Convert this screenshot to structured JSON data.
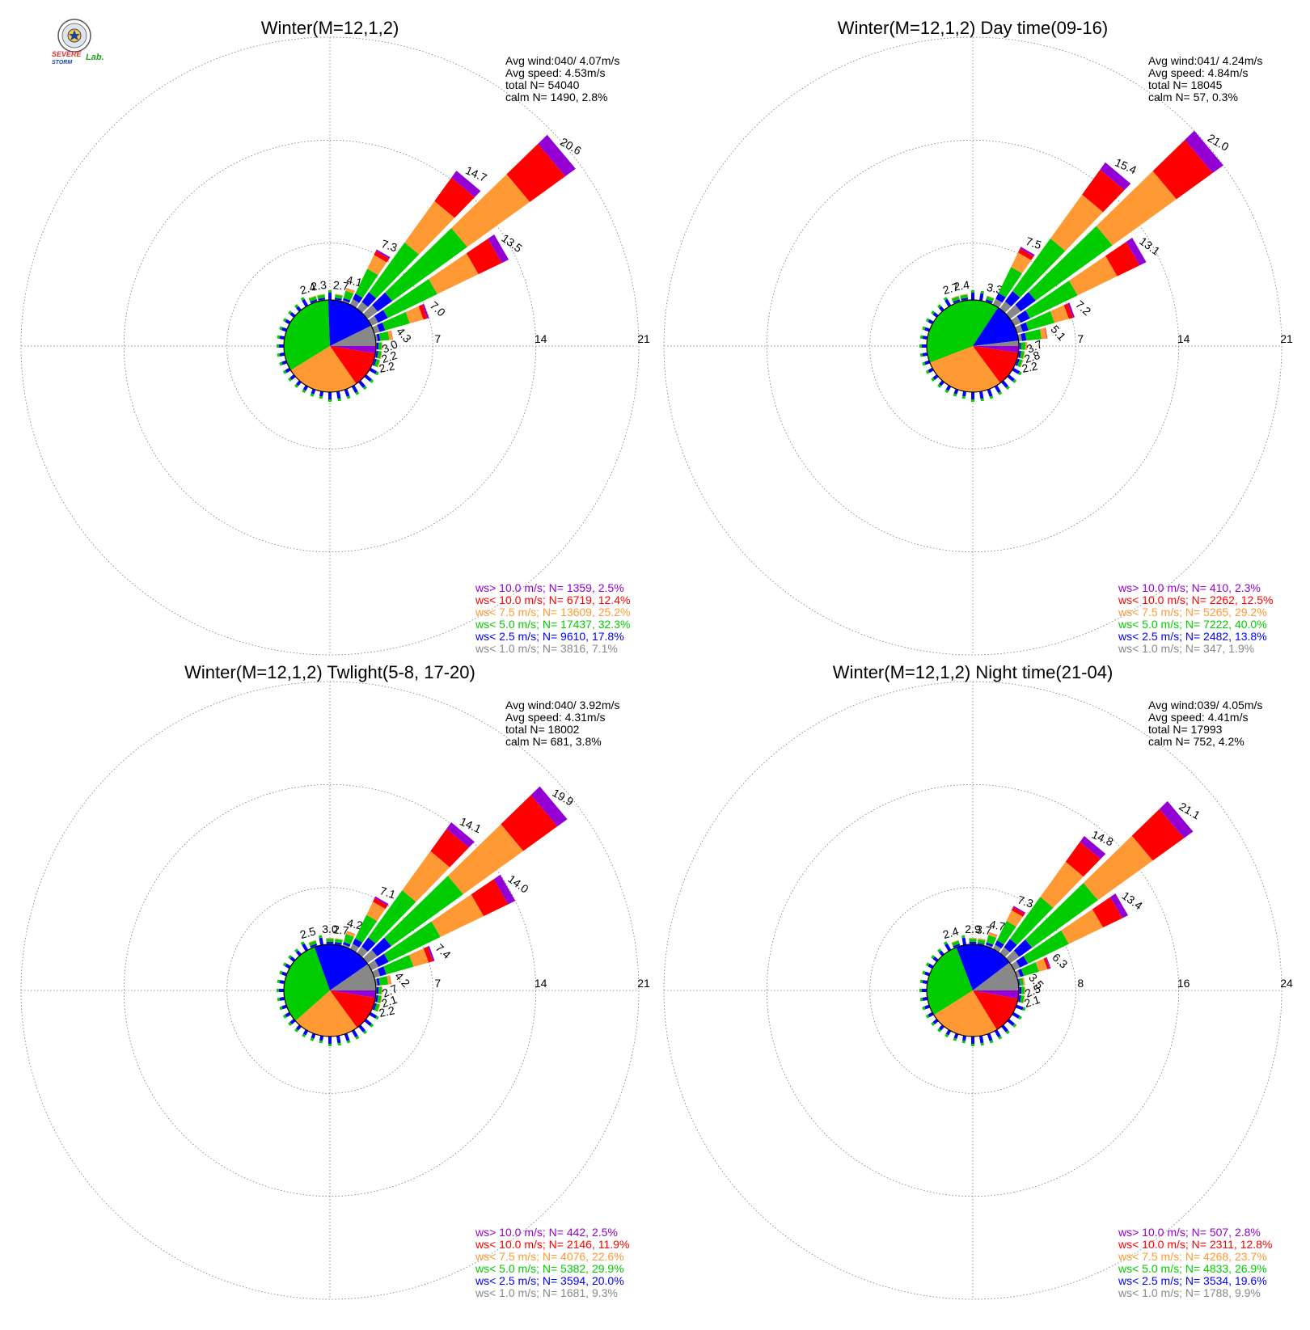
{
  "logo": {
    "text_severe": "SEVERE",
    "text_storm": "STORM",
    "text_lab": "Lab."
  },
  "colors": {
    "gt10": "#9400d3",
    "lt10": "#ff0000",
    "lt7_5": "#ff9933",
    "lt5": "#00cc00",
    "lt2_5": "#0000ff",
    "lt1": "#888888"
  },
  "chart_data": [
    {
      "type": "windrose",
      "title": "Winter(M=12,1,2)",
      "stats": [
        "Avg wind:040/ 4.07m/s",
        "Avg speed: 4.53m/s",
        "total N=      54040",
        "calm N=   1490,   2.8%"
      ],
      "ring_labels": [
        "7",
        "14",
        "21"
      ],
      "rmax": 21,
      "spokes": [
        {
          "deg": 10,
          "v": 2.7
        },
        {
          "deg": 20,
          "v": 4.1
        },
        {
          "deg": 30,
          "v": 7.3
        },
        {
          "deg": 40,
          "v": 14.7
        },
        {
          "deg": 50,
          "v": 20.6
        },
        {
          "deg": 60,
          "v": 13.5
        },
        {
          "deg": 70,
          "v": 7.0
        },
        {
          "deg": 80,
          "v": 4.3
        },
        {
          "deg": 90,
          "v": 3.0
        },
        {
          "deg": 100,
          "v": 2.2
        },
        {
          "deg": 110,
          "v": 2.2
        },
        {
          "deg": 340,
          "v": 2.4
        },
        {
          "deg": 350,
          "v": 2.3
        }
      ],
      "legend": [
        {
          "label": "ws> 10.0 m/s; N=  1359,  2.5%",
          "class": "gt10"
        },
        {
          "label": "ws< 10.0 m/s; N=  6719, 12.4%",
          "class": "lt10"
        },
        {
          "label": "ws<  7.5 m/s; N= 13609, 25.2%",
          "class": "lt7_5"
        },
        {
          "label": "ws<  5.0 m/s; N= 17437, 32.3%",
          "class": "lt5"
        },
        {
          "label": "ws<  2.5 m/s; N=  9610, 17.8%",
          "class": "lt2_5"
        },
        {
          "label": "ws<  1.0 m/s; N=  3816,  7.1%",
          "class": "lt1"
        }
      ],
      "pie": [
        2.5,
        12.4,
        25.2,
        32.3,
        17.8,
        7.1
      ]
    },
    {
      "type": "windrose",
      "title": "Winter(M=12,1,2) Day time(09-16)",
      "stats": [
        "Avg wind:041/ 4.24m/s",
        "Avg speed: 4.84m/s",
        "total N=      18045",
        "calm N=     57,   0.3%"
      ],
      "ring_labels": [
        "7",
        "14",
        "21"
      ],
      "rmax": 21,
      "spokes": [
        {
          "deg": 20,
          "v": 3.3
        },
        {
          "deg": 30,
          "v": 7.5
        },
        {
          "deg": 40,
          "v": 15.4
        },
        {
          "deg": 50,
          "v": 21.0
        },
        {
          "deg": 60,
          "v": 13.1
        },
        {
          "deg": 70,
          "v": 7.2
        },
        {
          "deg": 80,
          "v": 5.1
        },
        {
          "deg": 90,
          "v": 3.7
        },
        {
          "deg": 100,
          "v": 2.8
        },
        {
          "deg": 110,
          "v": 2.2
        },
        {
          "deg": 340,
          "v": 2.7
        },
        {
          "deg": 350,
          "v": 2.4
        }
      ],
      "legend": [
        {
          "label": "ws> 10.0 m/s; N=   410,  2.3%",
          "class": "gt10"
        },
        {
          "label": "ws< 10.0 m/s; N=  2262, 12.5%",
          "class": "lt10"
        },
        {
          "label": "ws<  7.5 m/s; N=  5265, 29.2%",
          "class": "lt7_5"
        },
        {
          "label": "ws<  5.0 m/s; N=  7222, 40.0%",
          "class": "lt5"
        },
        {
          "label": "ws<  2.5 m/s; N=  2482, 13.8%",
          "class": "lt2_5"
        },
        {
          "label": "ws<  1.0 m/s; N=   347,  1.9%",
          "class": "lt1"
        }
      ],
      "pie": [
        2.3,
        12.5,
        29.2,
        40.0,
        13.8,
        1.9
      ]
    },
    {
      "type": "windrose",
      "title": "Winter(M=12,1,2) Twlight(5-8, 17-20)",
      "stats": [
        "Avg wind:040/ 3.92m/s",
        "Avg speed: 4.31m/s",
        "total N=      18002",
        "calm N=    681,   3.8%"
      ],
      "ring_labels": [
        "7",
        "14",
        "21"
      ],
      "rmax": 21,
      "spokes": [
        {
          "deg": 0,
          "v": 3.0
        },
        {
          "deg": 10,
          "v": 2.7
        },
        {
          "deg": 20,
          "v": 4.2
        },
        {
          "deg": 30,
          "v": 7.1
        },
        {
          "deg": 40,
          "v": 14.1
        },
        {
          "deg": 50,
          "v": 19.9
        },
        {
          "deg": 60,
          "v": 14.0
        },
        {
          "deg": 70,
          "v": 7.4
        },
        {
          "deg": 80,
          "v": 4.2
        },
        {
          "deg": 90,
          "v": 2.7
        },
        {
          "deg": 100,
          "v": 2.1
        },
        {
          "deg": 110,
          "v": 2.2
        },
        {
          "deg": 340,
          "v": 2.5
        }
      ],
      "legend": [
        {
          "label": "ws> 10.0 m/s; N=   442,  2.5%",
          "class": "gt10"
        },
        {
          "label": "ws< 10.0 m/s; N=  2146, 11.9%",
          "class": "lt10"
        },
        {
          "label": "ws<  7.5 m/s; N=  4076, 22.6%",
          "class": "lt7_5"
        },
        {
          "label": "ws<  5.0 m/s; N=  5382, 29.9%",
          "class": "lt5"
        },
        {
          "label": "ws<  2.5 m/s; N=  3594, 20.0%",
          "class": "lt2_5"
        },
        {
          "label": "ws<  1.0 m/s; N=  1681,  9.3%",
          "class": "lt1"
        }
      ],
      "pie": [
        2.5,
        11.9,
        22.6,
        29.9,
        20.0,
        9.3
      ]
    },
    {
      "type": "windrose",
      "title": "Winter(M=12,1,2) Night time(21-04)",
      "stats": [
        "Avg wind:039/ 4.05m/s",
        "Avg speed: 4.41m/s",
        "total N=      17993",
        "calm N=    752,   4.2%"
      ],
      "ring_labels": [
        "8",
        "16",
        "24"
      ],
      "rmax": 24,
      "spokes": [
        {
          "deg": 0,
          "v": 2.9
        },
        {
          "deg": 10,
          "v": 3.7
        },
        {
          "deg": 20,
          "v": 4.7
        },
        {
          "deg": 30,
          "v": 7.3
        },
        {
          "deg": 40,
          "v": 14.8
        },
        {
          "deg": 50,
          "v": 21.1
        },
        {
          "deg": 60,
          "v": 13.4
        },
        {
          "deg": 70,
          "v": 6.3
        },
        {
          "deg": 80,
          "v": 3.5
        },
        {
          "deg": 90,
          "v": 2.5
        },
        {
          "deg": 100,
          "v": 2.1
        },
        {
          "deg": 340,
          "v": 2.4
        }
      ],
      "legend": [
        {
          "label": "ws> 10.0 m/s; N=   507,  2.8%",
          "class": "gt10"
        },
        {
          "label": "ws< 10.0 m/s; N=  2311, 12.8%",
          "class": "lt10"
        },
        {
          "label": "ws<  7.5 m/s; N=  4268, 23.7%",
          "class": "lt7_5"
        },
        {
          "label": "ws<  5.0 m/s; N=  4833, 26.9%",
          "class": "lt5"
        },
        {
          "label": "ws<  2.5 m/s; N=  3534, 19.6%",
          "class": "lt2_5"
        },
        {
          "label": "ws<  1.0 m/s; N=  1788,  9.9%",
          "class": "lt1"
        }
      ],
      "pie": [
        2.8,
        12.8,
        23.7,
        26.9,
        19.6,
        9.9
      ]
    }
  ]
}
